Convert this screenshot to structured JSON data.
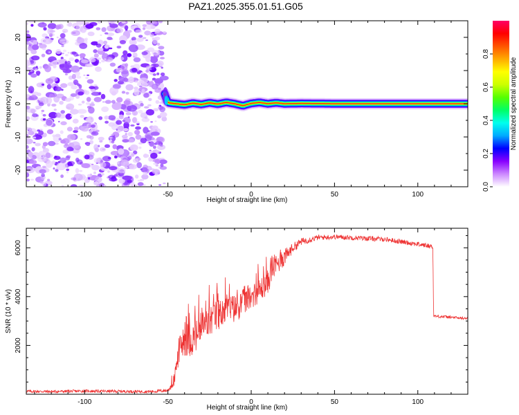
{
  "figure_title": "PAZ1.2025.355.01.51.G05",
  "chart_data": [
    {
      "type": "heatmap",
      "title": "PAZ1.2025.355.01.51.G05",
      "xlabel": "Height of straight line (km)",
      "ylabel": "Frequency (Hz)",
      "xlim": [
        -135,
        130
      ],
      "ylim": [
        -25,
        25
      ],
      "xticks": [
        -100,
        -50,
        0,
        50,
        100
      ],
      "yticks": [
        -20,
        -10,
        0,
        10,
        20
      ],
      "noise_region_x": [
        -135,
        -52
      ],
      "ridge": {
        "description": "dominant spectral peak vs height",
        "x": [
          -52,
          -50,
          -45,
          -40,
          -35,
          -30,
          -25,
          -20,
          -15,
          -10,
          -5,
          0,
          5,
          10,
          15,
          20,
          30,
          50,
          70,
          90,
          110,
          130
        ],
        "frequency": [
          3,
          0.3,
          0,
          -0.3,
          0.2,
          -0.2,
          0.3,
          -0.1,
          0.4,
          0,
          -0.6,
          0.1,
          0.4,
          0,
          0.3,
          0,
          0.1,
          0,
          0,
          0,
          0,
          0
        ]
      },
      "colorbar": {
        "label": "Normalized spectral amplitude",
        "range": [
          0,
          1
        ],
        "ticks": [
          "0.0",
          "0.2",
          "0.4",
          "0.6",
          "0.8"
        ],
        "colors": [
          "#ffffff",
          "#cc88ff",
          "#8800ff",
          "#0000ff",
          "#00aaff",
          "#00ffee",
          "#00ff66",
          "#55ff00",
          "#ccff00",
          "#ffff00",
          "#ffaa00",
          "#ff5500",
          "#ff0000",
          "#ff0066"
        ]
      }
    },
    {
      "type": "line",
      "xlabel": "Height of straight line (km)",
      "ylabel": "SNR (10 * v/v)",
      "xlim": [
        -135,
        130
      ],
      "ylim": [
        0,
        6800
      ],
      "xticks": [
        -100,
        -50,
        0,
        50,
        100
      ],
      "yticks": [
        2000,
        4000,
        6000
      ],
      "series": [
        {
          "name": "SNR",
          "color": "#ee3333",
          "x": [
            -135,
            -120,
            -100,
            -80,
            -60,
            -50,
            -47,
            -45,
            -44,
            -42,
            -40,
            -35,
            -30,
            -25,
            -20,
            -15,
            -10,
            -5,
            0,
            5,
            10,
            13,
            15,
            20,
            25,
            30,
            40,
            50,
            60,
            70,
            80,
            90,
            100,
            109,
            109.5,
            115,
            120,
            130
          ],
          "values": [
            120,
            110,
            130,
            120,
            110,
            160,
            450,
            900,
            1600,
            2000,
            2200,
            2250,
            2600,
            3000,
            3250,
            3450,
            3500,
            3750,
            4000,
            4250,
            4600,
            5200,
            5300,
            5600,
            6000,
            6250,
            6420,
            6450,
            6420,
            6380,
            6350,
            6250,
            6150,
            6050,
            3200,
            3180,
            3150,
            3100
          ],
          "noise_amplitude": [
            60,
            60,
            60,
            60,
            60,
            80,
            200,
            400,
            550,
            650,
            650,
            700,
            700,
            700,
            650,
            600,
            600,
            550,
            500,
            500,
            500,
            500,
            450,
            350,
            200,
            150,
            110,
            100,
            100,
            100,
            100,
            100,
            100,
            100,
            60,
            60,
            60,
            60
          ]
        }
      ]
    }
  ]
}
